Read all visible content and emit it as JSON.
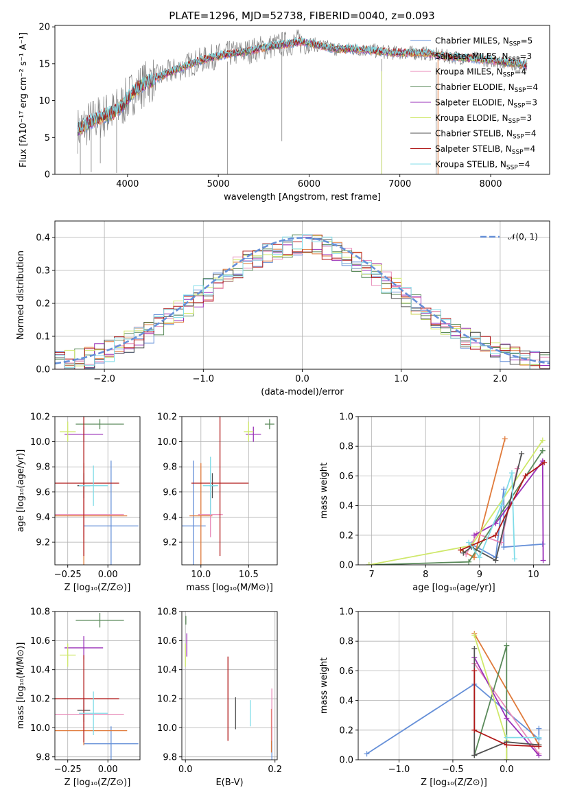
{
  "colors": {
    "chabrier_miles": "#6690d8",
    "salpeter_miles": "#e07a3a",
    "kroupa_miles": "#e88ab8",
    "chabrier_elodie": "#5a8a5a",
    "salpeter_elodie": "#9a30b8",
    "kroupa_elodie": "#cfe86a",
    "chabrier_stelib": "#505050",
    "salpeter_stelib": "#b01818",
    "kroupa_stelib": "#80dce8",
    "data": "#808080",
    "normal": "#6690d8"
  },
  "chart_data": [
    {
      "id": "spectrum",
      "type": "line",
      "title": "PLATE=1296, MJD=52738, FIBERID=0040, z=0.093",
      "xlabel": "wavelength [Angstrom, rest frame]",
      "ylabel": "Flux [fλ10⁻¹⁷ erg cm⁻² s⁻¹ A⁻¹]",
      "xlim": [
        3200,
        8650
      ],
      "ylim": [
        0,
        20.2
      ],
      "xticks": [
        4000,
        5000,
        6000,
        7000,
        8000
      ],
      "yticks": [
        0,
        5,
        10,
        15,
        20
      ],
      "grid": false,
      "legend_position": "top-right",
      "legend": [
        "Chabrier MILES, N_SSP=5",
        "Salpeter MILES, N_SSP=3",
        "Kroupa MILES, N_SSP=4",
        "Chabrier ELODIE, N_SSP=4",
        "Salpeter ELODIE, N_SSP=3",
        "Kroupa ELODIE, N_SSP=3",
        "Chabrier STELIB, N_SSP=4",
        "Salpeter STELIB, N_SSP=4",
        "Kroupa STELIB, N_SSP=4"
      ],
      "continuum": {
        "x": [
          3450,
          3550,
          3650,
          3750,
          3850,
          3950,
          4050,
          4150,
          4300,
          4500,
          4700,
          4900,
          5100,
          5300,
          5500,
          5700,
          5900,
          6100,
          6300,
          6500,
          6700,
          6900,
          7100,
          7300,
          7500,
          7700,
          7900,
          8100,
          8300,
          8400
        ],
        "y": [
          6.0,
          6.8,
          7.5,
          8.0,
          8.4,
          9.5,
          11.0,
          12.0,
          13.0,
          14.0,
          15.0,
          15.8,
          16.3,
          16.6,
          17.2,
          17.6,
          18.0,
          17.5,
          17.0,
          17.0,
          16.8,
          16.5,
          16.5,
          16.4,
          16.0,
          15.8,
          15.6,
          15.3,
          15.0,
          14.8
        ]
      },
      "data_spikes": [
        {
          "x": 3480,
          "y": 0
        },
        {
          "x": 3600,
          "y": 0.3
        },
        {
          "x": 3700,
          "y": 1.5
        },
        {
          "x": 3880,
          "y": 0.2
        },
        {
          "x": 5100,
          "y": 0
        },
        {
          "x": 5700,
          "y": 4.5
        },
        {
          "x": 6800,
          "y": 0
        },
        {
          "x": 7400,
          "y": 0
        }
      ]
    },
    {
      "id": "residuals",
      "type": "bar",
      "xlabel": "(data-model)/error",
      "ylabel": "Normed distribution",
      "xlim": [
        -2.5,
        2.5
      ],
      "ylim": [
        0,
        0.45
      ],
      "xticks": [
        -2,
        -1,
        0,
        1,
        2
      ],
      "yticks": [
        0.0,
        0.1,
        0.2,
        0.3,
        0.4
      ],
      "grid": true,
      "legend": [
        "𝒩(0, 1)"
      ],
      "legend_position": "top-right",
      "bin_width": 0.1
    },
    {
      "id": "age_vs_Z",
      "type": "scatter",
      "xlabel": "Z [log₁₀(Z/Z⊙)]",
      "ylabel": "age  [log₁₀(age/yr)]",
      "xlim": [
        -0.33,
        0.2
      ],
      "ylim": [
        9.02,
        10.2
      ],
      "xticks": [
        -0.25,
        0.0
      ],
      "yticks": [
        9.2,
        9.4,
        9.6,
        9.8,
        10.0,
        10.2
      ],
      "grid": true,
      "points": [
        {
          "series": "chabrier_miles",
          "x": 0.02,
          "y": 9.33,
          "xerr": 0.17,
          "yerr": 0.52
        },
        {
          "series": "salpeter_miles",
          "x": -0.15,
          "y": 9.41,
          "xerr": 0.27,
          "yerr": 0.42
        },
        {
          "series": "kroupa_miles",
          "x": -0.15,
          "y": 9.42,
          "xerr": 0.25,
          "yerr": 0.18
        },
        {
          "series": "chabrier_elodie",
          "x": -0.05,
          "y": 10.14,
          "xerr": 0.15,
          "yerr": 0.04
        },
        {
          "series": "salpeter_elodie",
          "x": -0.15,
          "y": 10.06,
          "xerr": 0.12,
          "yerr": 0.06
        },
        {
          "series": "kroupa_elodie",
          "x": -0.25,
          "y": 10.08,
          "xerr": 0.05,
          "yerr": 0.08
        },
        {
          "series": "chabrier_stelib",
          "x": -0.15,
          "y": 9.65,
          "xerr": 0.04,
          "yerr": 0.1
        },
        {
          "series": "salpeter_stelib",
          "x": -0.15,
          "y": 9.67,
          "xerr": 0.22,
          "yerr": 0.58
        },
        {
          "series": "kroupa_stelib",
          "x": -0.09,
          "y": 9.65,
          "xerr": 0.09,
          "yerr": 0.16
        }
      ]
    },
    {
      "id": "age_vs_mass",
      "type": "scatter",
      "xlabel": "mass [log₁₀(M/M⊙)]",
      "ylabel": "",
      "xlim": [
        9.8,
        10.8
      ],
      "ylim": [
        9.02,
        10.2
      ],
      "xticks": [
        10.0,
        10.5
      ],
      "yticks": [
        9.2,
        9.4,
        9.6,
        9.8,
        10.0,
        10.2
      ],
      "grid": true,
      "points": [
        {
          "series": "chabrier_miles",
          "x": 9.92,
          "y": 9.33,
          "xerr": 0.13,
          "yerr": 0.52
        },
        {
          "series": "salpeter_miles",
          "x": 10.0,
          "y": 9.41,
          "xerr": 0.12,
          "yerr": 0.42
        },
        {
          "series": "kroupa_miles",
          "x": 10.1,
          "y": 9.42,
          "xerr": 0.13,
          "yerr": 0.18
        },
        {
          "series": "chabrier_elodie",
          "x": 10.72,
          "y": 10.14,
          "xerr": 0.05,
          "yerr": 0.04
        },
        {
          "series": "salpeter_elodie",
          "x": 10.55,
          "y": 10.06,
          "xerr": 0.08,
          "yerr": 0.06
        },
        {
          "series": "kroupa_elodie",
          "x": 10.5,
          "y": 10.08,
          "xerr": 0.05,
          "yerr": 0.08
        },
        {
          "series": "chabrier_stelib",
          "x": 10.12,
          "y": 9.65,
          "xerr": 0.03,
          "yerr": 0.1
        },
        {
          "series": "salpeter_stelib",
          "x": 10.2,
          "y": 9.67,
          "xerr": 0.3,
          "yerr": 0.58
        },
        {
          "series": "kroupa_stelib",
          "x": 10.1,
          "y": 9.65,
          "xerr": 0.08,
          "yerr": 0.23
        }
      ]
    },
    {
      "id": "mass_weight_vs_age",
      "type": "line",
      "xlabel": "age  [log₁₀(age/yr)]",
      "ylabel": "mass weight",
      "xlim": [
        6.75,
        10.3
      ],
      "ylim": [
        0,
        1.0
      ],
      "xticks": [
        7,
        8,
        9,
        10
      ],
      "yticks": [
        0.0,
        0.2,
        0.4,
        0.6,
        0.8,
        1.0
      ],
      "grid": true,
      "series": [
        {
          "series": "chabrier_miles",
          "x": [
            8.85,
            9.3,
            9.45,
            9.45,
            10.17
          ],
          "y": [
            0.14,
            0.05,
            0.51,
            0.12,
            0.14
          ]
        },
        {
          "series": "salpeter_miles",
          "x": [
            8.65,
            8.9,
            9.47
          ],
          "y": [
            0.1,
            0.05,
            0.85
          ]
        },
        {
          "series": "kroupa_miles",
          "x": [
            8.75,
            8.95,
            9.4,
            9.7
          ],
          "y": [
            0.07,
            0.21,
            0.15,
            0.65
          ]
        },
        {
          "series": "chabrier_elodie",
          "x": [
            6.95,
            8.8,
            10.17
          ],
          "y": [
            0.0,
            0.02,
            0.77
          ]
        },
        {
          "series": "salpeter_elodie",
          "x": [
            8.9,
            9.3,
            10.17,
            10.18
          ],
          "y": [
            0.2,
            0.28,
            0.7,
            0.03
          ]
        },
        {
          "series": "kroupa_elodie",
          "x": [
            6.95,
            8.85,
            10.17
          ],
          "y": [
            0.0,
            0.13,
            0.84
          ]
        },
        {
          "series": "chabrier_stelib",
          "x": [
            8.7,
            8.85,
            9.3,
            9.78
          ],
          "y": [
            0.08,
            0.12,
            0.03,
            0.75
          ]
        },
        {
          "series": "salpeter_stelib",
          "x": [
            8.65,
            9.3,
            9.85,
            10.2
          ],
          "y": [
            0.1,
            0.2,
            0.6,
            0.69
          ]
        },
        {
          "series": "kroupa_stelib",
          "x": [
            8.8,
            9.0,
            9.4,
            9.6,
            9.65
          ],
          "y": [
            0.15,
            0.05,
            0.4,
            0.62,
            0.04
          ]
        }
      ]
    },
    {
      "id": "mass_vs_Z",
      "type": "scatter",
      "xlabel": "Z [log₁₀(Z/Z⊙)]",
      "ylabel": "mass [log₁₀(M/M⊙)]",
      "xlim": [
        -0.33,
        0.2
      ],
      "ylim": [
        9.78,
        10.8
      ],
      "xticks": [
        -0.25,
        0.0
      ],
      "yticks": [
        9.8,
        10.0,
        10.2,
        10.4,
        10.6,
        10.8
      ],
      "grid": true,
      "points": [
        {
          "series": "chabrier_miles",
          "x": 0.02,
          "y": 9.89,
          "xerr": 0.17,
          "yerr": 0.12
        },
        {
          "series": "salpeter_miles",
          "x": -0.15,
          "y": 9.98,
          "xerr": 0.27,
          "yerr": 0.1
        },
        {
          "series": "kroupa_miles",
          "x": -0.15,
          "y": 10.09,
          "xerr": 0.25,
          "yerr": 0.12
        },
        {
          "series": "chabrier_elodie",
          "x": -0.05,
          "y": 10.74,
          "xerr": 0.15,
          "yerr": 0.05
        },
        {
          "series": "salpeter_elodie",
          "x": -0.15,
          "y": 10.55,
          "xerr": 0.12,
          "yerr": 0.08
        },
        {
          "series": "kroupa_elodie",
          "x": -0.25,
          "y": 10.5,
          "xerr": 0.05,
          "yerr": 0.08
        },
        {
          "series": "chabrier_stelib",
          "x": -0.15,
          "y": 10.12,
          "xerr": 0.04,
          "yerr": 0.08
        },
        {
          "series": "salpeter_stelib",
          "x": -0.15,
          "y": 10.2,
          "xerr": 0.22,
          "yerr": 0.3
        },
        {
          "series": "kroupa_stelib",
          "x": -0.09,
          "y": 10.1,
          "xerr": 0.09,
          "yerr": 0.15
        }
      ]
    },
    {
      "id": "mass_vs_ebv",
      "type": "scatter",
      "xlabel": "E(B-V)",
      "ylabel": "",
      "xlim": [
        -0.008,
        0.205
      ],
      "ylim": [
        9.78,
        10.8
      ],
      "xticks": [
        0.0,
        0.2
      ],
      "yticks": [
        9.8,
        10.0,
        10.2,
        10.4,
        10.6,
        10.8
      ],
      "grid": true,
      "points": [
        {
          "series": "chabrier_miles",
          "x": 0.193,
          "y": 9.89,
          "xerr": 0.0,
          "yerr": 0.12
        },
        {
          "series": "salpeter_miles",
          "x": 0.192,
          "y": 9.98,
          "xerr": 0.0,
          "yerr": 0.15
        },
        {
          "series": "kroupa_miles",
          "x": 0.193,
          "y": 10.09,
          "xerr": 0.0,
          "yerr": 0.18
        },
        {
          "series": "chabrier_elodie",
          "x": 0.001,
          "y": 10.74,
          "xerr": 0.0,
          "yerr": 0.03
        },
        {
          "series": "salpeter_elodie",
          "x": 0.003,
          "y": 10.57,
          "xerr": 0.0,
          "yerr": 0.08
        },
        {
          "series": "kroupa_elodie",
          "x": 0.0,
          "y": 10.5,
          "xerr": 0.0,
          "yerr": 0.08
        },
        {
          "series": "chabrier_stelib",
          "x": 0.112,
          "y": 10.1,
          "xerr": 0.0,
          "yerr": 0.11
        },
        {
          "series": "salpeter_stelib",
          "x": 0.095,
          "y": 10.2,
          "xerr": 0.0,
          "yerr": 0.29
        },
        {
          "series": "kroupa_stelib",
          "x": 0.145,
          "y": 10.1,
          "xerr": 0.0,
          "yerr": 0.09
        }
      ]
    },
    {
      "id": "mass_weight_vs_Z",
      "type": "line",
      "xlabel": "Z [log₁₀(Z/Z⊙)]",
      "ylabel": "mass weight",
      "xlim": [
        -1.38,
        0.4
      ],
      "ylim": [
        0,
        1.0
      ],
      "xticks": [
        -1.0,
        -0.5,
        0.0
      ],
      "yticks": [
        0.0,
        0.2,
        0.4,
        0.6,
        0.8,
        1.0
      ],
      "grid": true,
      "series": [
        {
          "series": "chabrier_miles",
          "x": [
            -1.3,
            -0.3,
            0.3,
            0.3
          ],
          "y": [
            0.04,
            0.51,
            0.14,
            0.21
          ]
        },
        {
          "series": "salpeter_miles",
          "x": [
            -0.3,
            0.3
          ],
          "y": [
            0.85,
            0.1
          ]
        },
        {
          "series": "kroupa_miles",
          "x": [
            -0.3,
            0.3
          ],
          "y": [
            0.65,
            0.04
          ]
        },
        {
          "series": "chabrier_elodie",
          "x": [
            -0.3,
            0.0,
            0.0
          ],
          "y": [
            0.03,
            0.77,
            0.0
          ]
        },
        {
          "series": "salpeter_elodie",
          "x": [
            -0.3,
            0.0,
            0.3
          ],
          "y": [
            0.69,
            0.28,
            0.03
          ]
        },
        {
          "series": "kroupa_elodie",
          "x": [
            -0.3,
            0.0,
            0.0
          ],
          "y": [
            0.84,
            0.13,
            0.0
          ]
        },
        {
          "series": "chabrier_stelib",
          "x": [
            -0.3,
            -0.3,
            0.0,
            0.3
          ],
          "y": [
            0.75,
            0.03,
            0.12,
            0.1
          ]
        },
        {
          "series": "salpeter_stelib",
          "x": [
            -0.3,
            -0.3,
            0.0,
            0.3
          ],
          "y": [
            0.6,
            0.2,
            0.1,
            0.09
          ]
        },
        {
          "series": "kroupa_stelib",
          "x": [
            0.0,
            0.3
          ],
          "y": [
            0.15,
            0.15
          ]
        }
      ]
    }
  ]
}
